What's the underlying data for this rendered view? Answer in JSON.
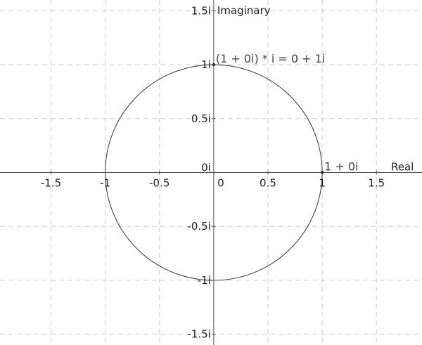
{
  "chart_data": {
    "type": "scatter",
    "xlabel": "Real",
    "ylabel": "Imaginary",
    "xlim": [
      -1.97,
      1.92
    ],
    "ylim": [
      -1.6,
      1.6
    ],
    "grid": true,
    "grid_step": 0.5,
    "x_ticks": [
      -1.5,
      -1,
      -0.5,
      0,
      0.5,
      1,
      1.5
    ],
    "x_tick_labels": [
      "-1.5",
      "-1",
      "-0.5",
      "0",
      "0.5",
      "1",
      "1.5"
    ],
    "y_ticks": [
      1.5,
      1,
      0.5,
      0,
      -0.5,
      -1,
      -1.5
    ],
    "y_tick_labels": [
      "1.5i",
      "1i",
      "0.5i",
      "0i",
      "-0.5i",
      "-1i",
      "-1.5i"
    ],
    "shapes": [
      {
        "kind": "circle",
        "center": [
          0,
          0
        ],
        "radius": 1
      }
    ],
    "points": [
      {
        "x": 1,
        "y": 0,
        "label": "1 + 0i"
      },
      {
        "x": 0,
        "y": 1,
        "label": "(1 + 0i) * i = 0 + 1i"
      }
    ],
    "colors": {
      "axis": "#555555",
      "grid": "#cccccc",
      "circle": "#333333",
      "point": "#333333",
      "point_label": "#444444"
    }
  }
}
